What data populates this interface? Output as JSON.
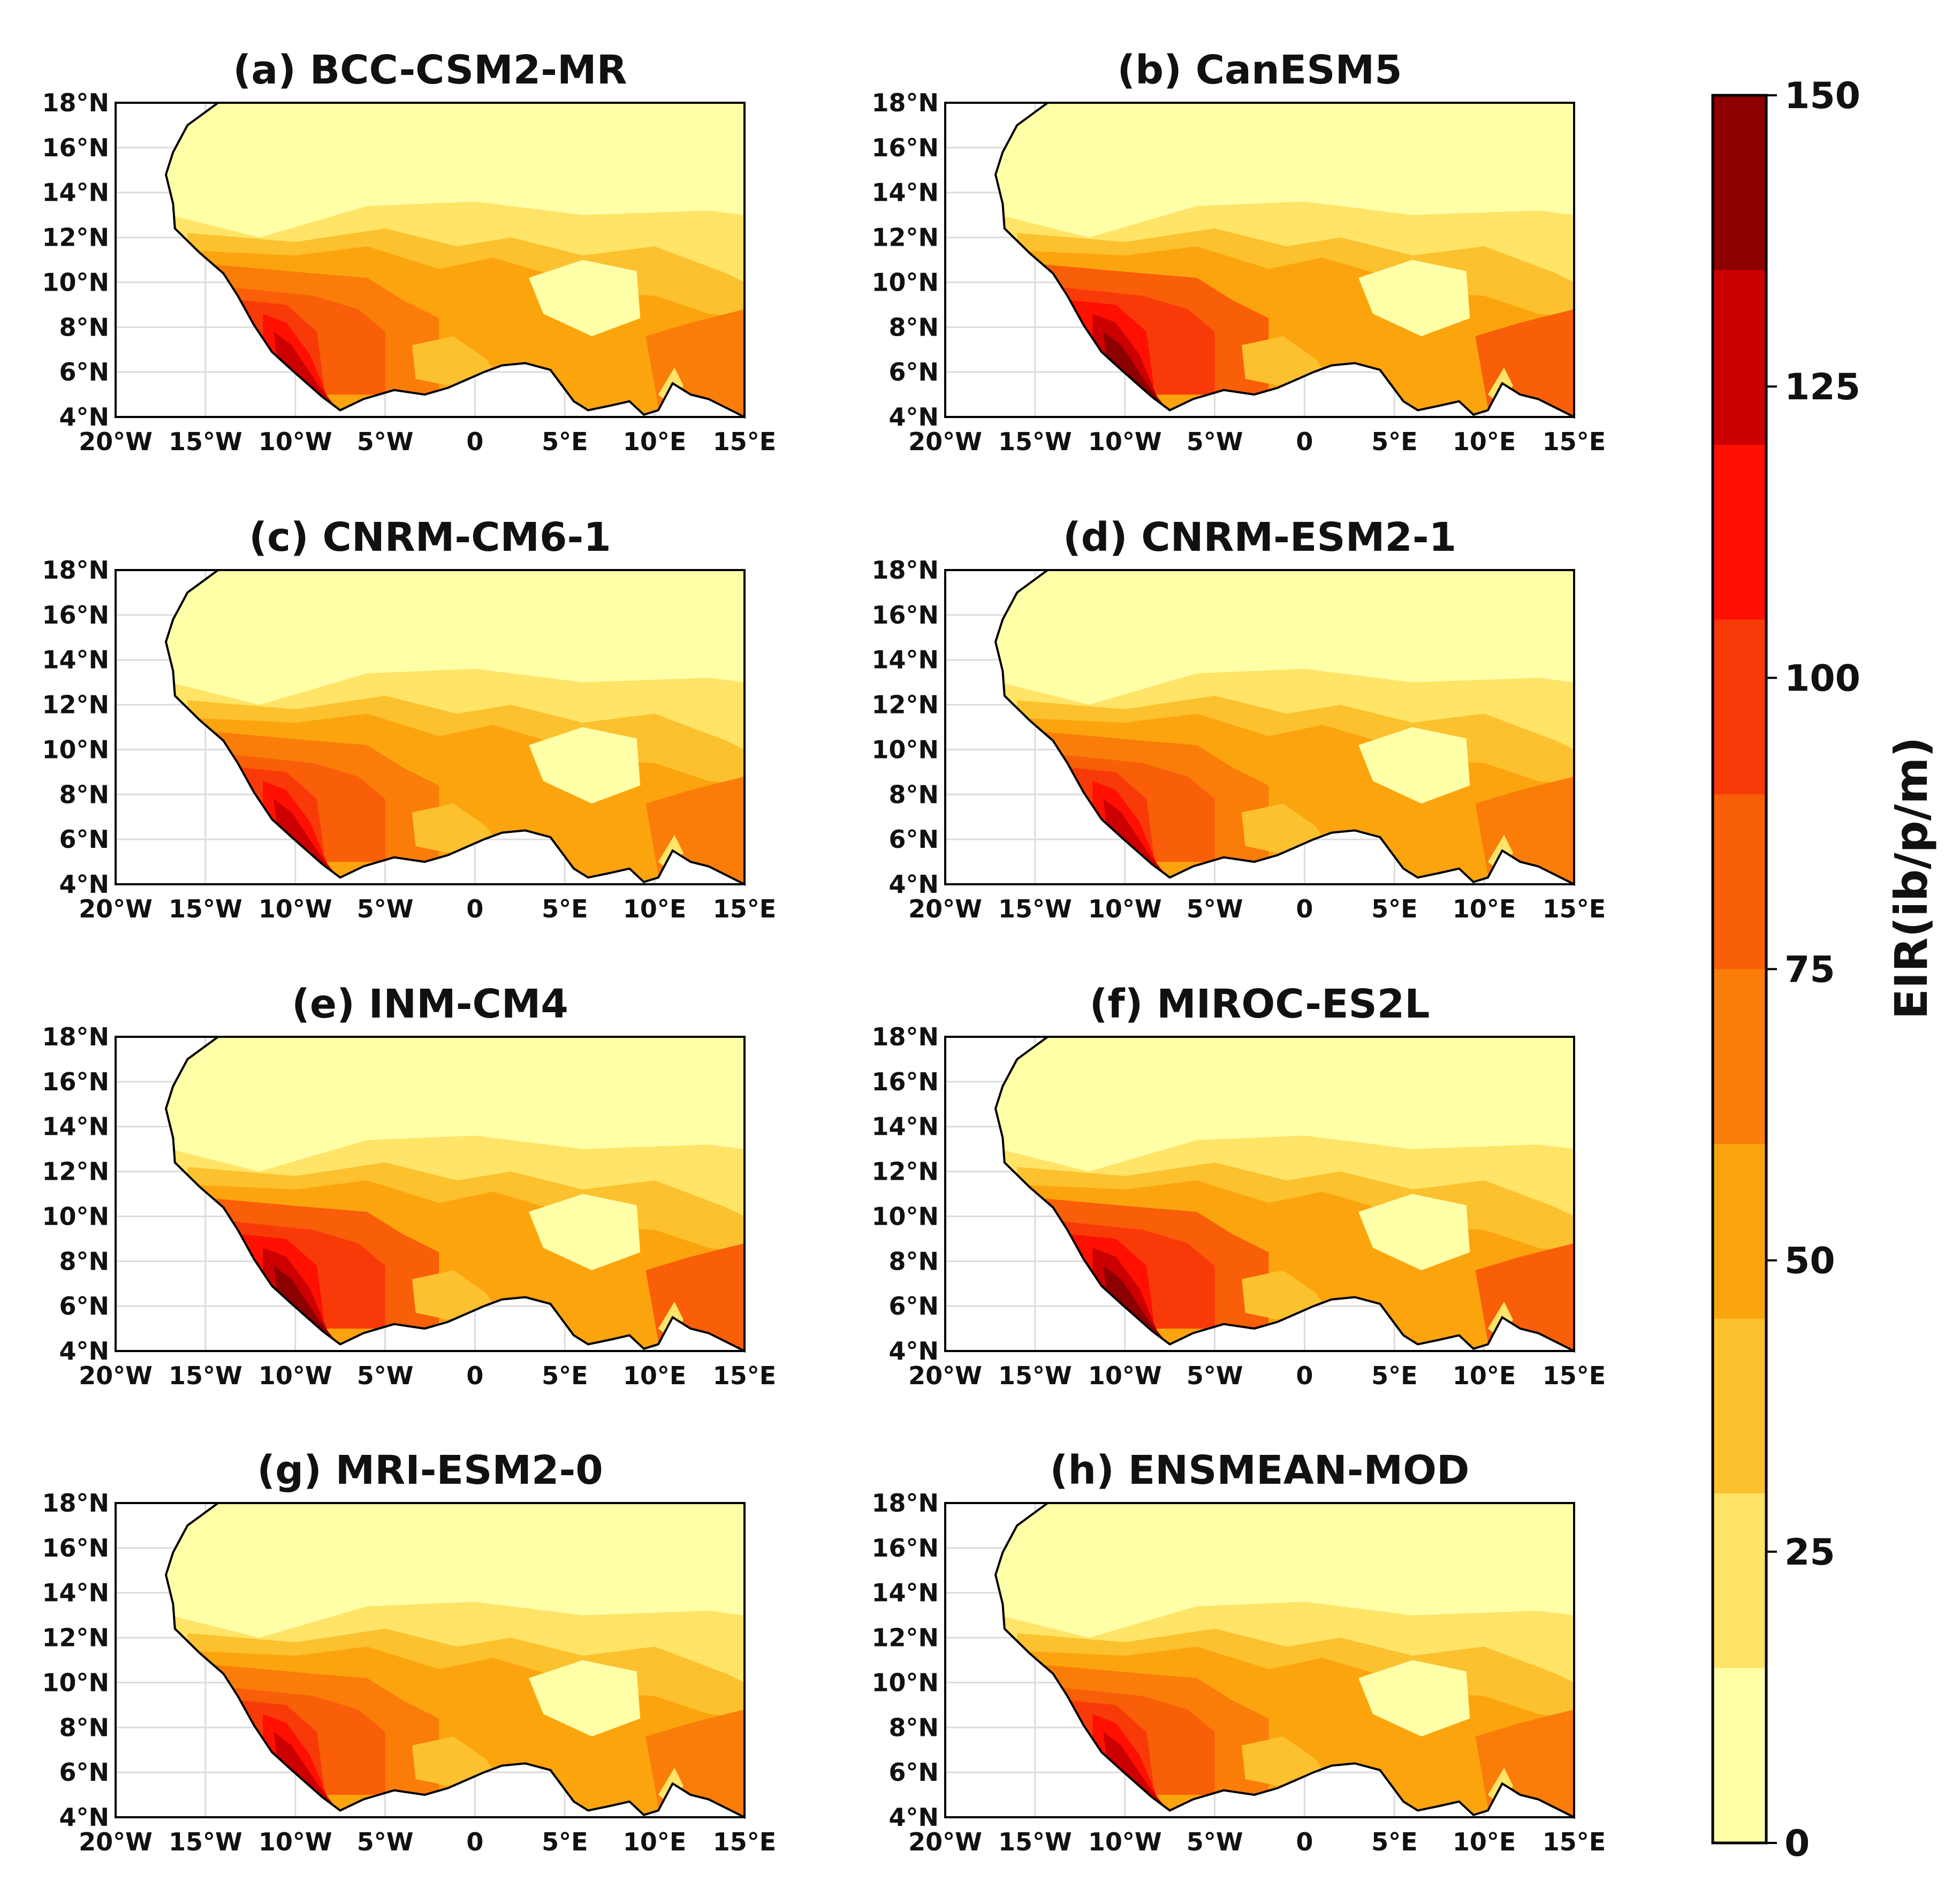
{
  "chart_data": {
    "type": "heatmap",
    "figure_kind": "multi-panel filled-contour maps",
    "region": "West Africa",
    "x_ticks": [
      "20°W",
      "15°W",
      "10°W",
      "5°W",
      "0",
      "5°E",
      "10°E",
      "15°E"
    ],
    "y_ticks": [
      "4°N",
      "6°N",
      "8°N",
      "10°N",
      "12°N",
      "14°N",
      "16°N",
      "18°N"
    ],
    "xlim": [
      -20,
      15
    ],
    "ylim": [
      4,
      18
    ],
    "panels": [
      {
        "title": "(a) BCC-CSM2-MR"
      },
      {
        "title": "(b) CanESM5"
      },
      {
        "title": "(c) CNRM-CM6-1"
      },
      {
        "title": "(d) CNRM-ESM2-1"
      },
      {
        "title": "(e) INM-CM4"
      },
      {
        "title": "(f) MIROC-ES2L"
      },
      {
        "title": "(g) MRI-ESM2-0"
      },
      {
        "title": "(h) ENSMEAN-MOD"
      }
    ],
    "colorbar": {
      "label": "EIR(ib/p/m)",
      "range": [
        0,
        150
      ],
      "ticks": [
        0,
        25,
        50,
        75,
        100,
        125,
        150
      ],
      "tick_labels": [
        "0",
        "25",
        "50",
        "75",
        "100",
        "125",
        "150"
      ],
      "levels": [
        0,
        15,
        30,
        45,
        60,
        75,
        90,
        105,
        120,
        135,
        150
      ],
      "colors": [
        "#ffffa8",
        "#ffe468",
        "#fcc12e",
        "#fca40e",
        "#fa7d0a",
        "#f95e08",
        "#f83a08",
        "#ff1000",
        "#cc0000",
        "#8c0000",
        "#6a0000"
      ]
    }
  }
}
